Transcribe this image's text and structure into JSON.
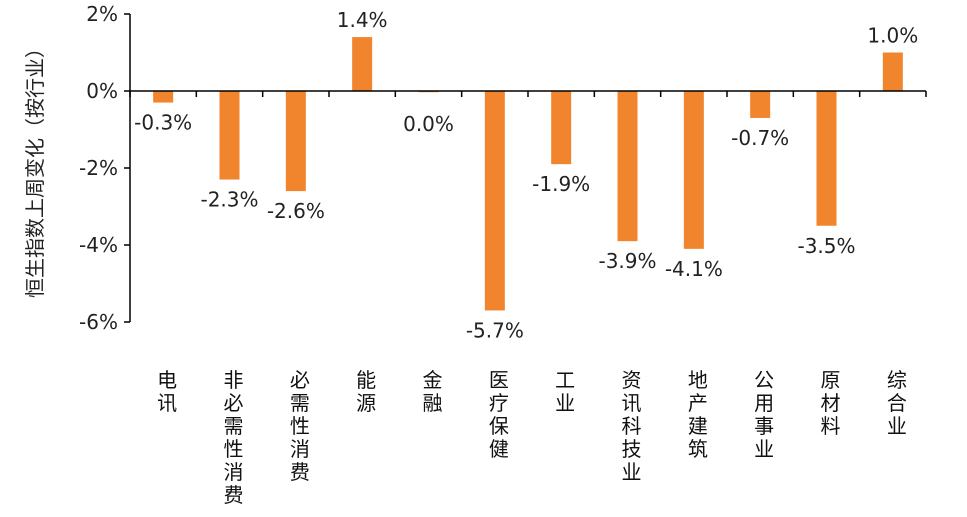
{
  "chart_data": {
    "type": "bar",
    "ylabel": "恒生指数上周变化（按行业）",
    "categories": [
      "电讯",
      "非必需性消费",
      "必需性消费",
      "能源",
      "金融",
      "医疗保健",
      "工业",
      "资讯科技业",
      "地产建筑",
      "公用事业",
      "原材料",
      "综合业"
    ],
    "values": [
      -0.3,
      -2.3,
      -2.6,
      1.4,
      0.0,
      -5.7,
      -1.9,
      -3.9,
      -4.1,
      -0.7,
      -3.5,
      1.0
    ],
    "value_labels": [
      "-0.3%",
      "-2.3%",
      "-2.6%",
      "1.4%",
      "0.0%",
      "-5.7%",
      "-1.9%",
      "-3.9%",
      "-4.1%",
      "-0.7%",
      "-3.5%",
      "1.0%"
    ],
    "ylim": [
      -6,
      2
    ],
    "yticks": [
      2,
      0,
      -2,
      -4,
      -6
    ],
    "ytick_labels": [
      "2%",
      "0%",
      "-2%",
      "-4%",
      "-6%"
    ],
    "grid": false,
    "legend": "none",
    "bar_color": "#F0852D",
    "axis_color": "#000000"
  }
}
